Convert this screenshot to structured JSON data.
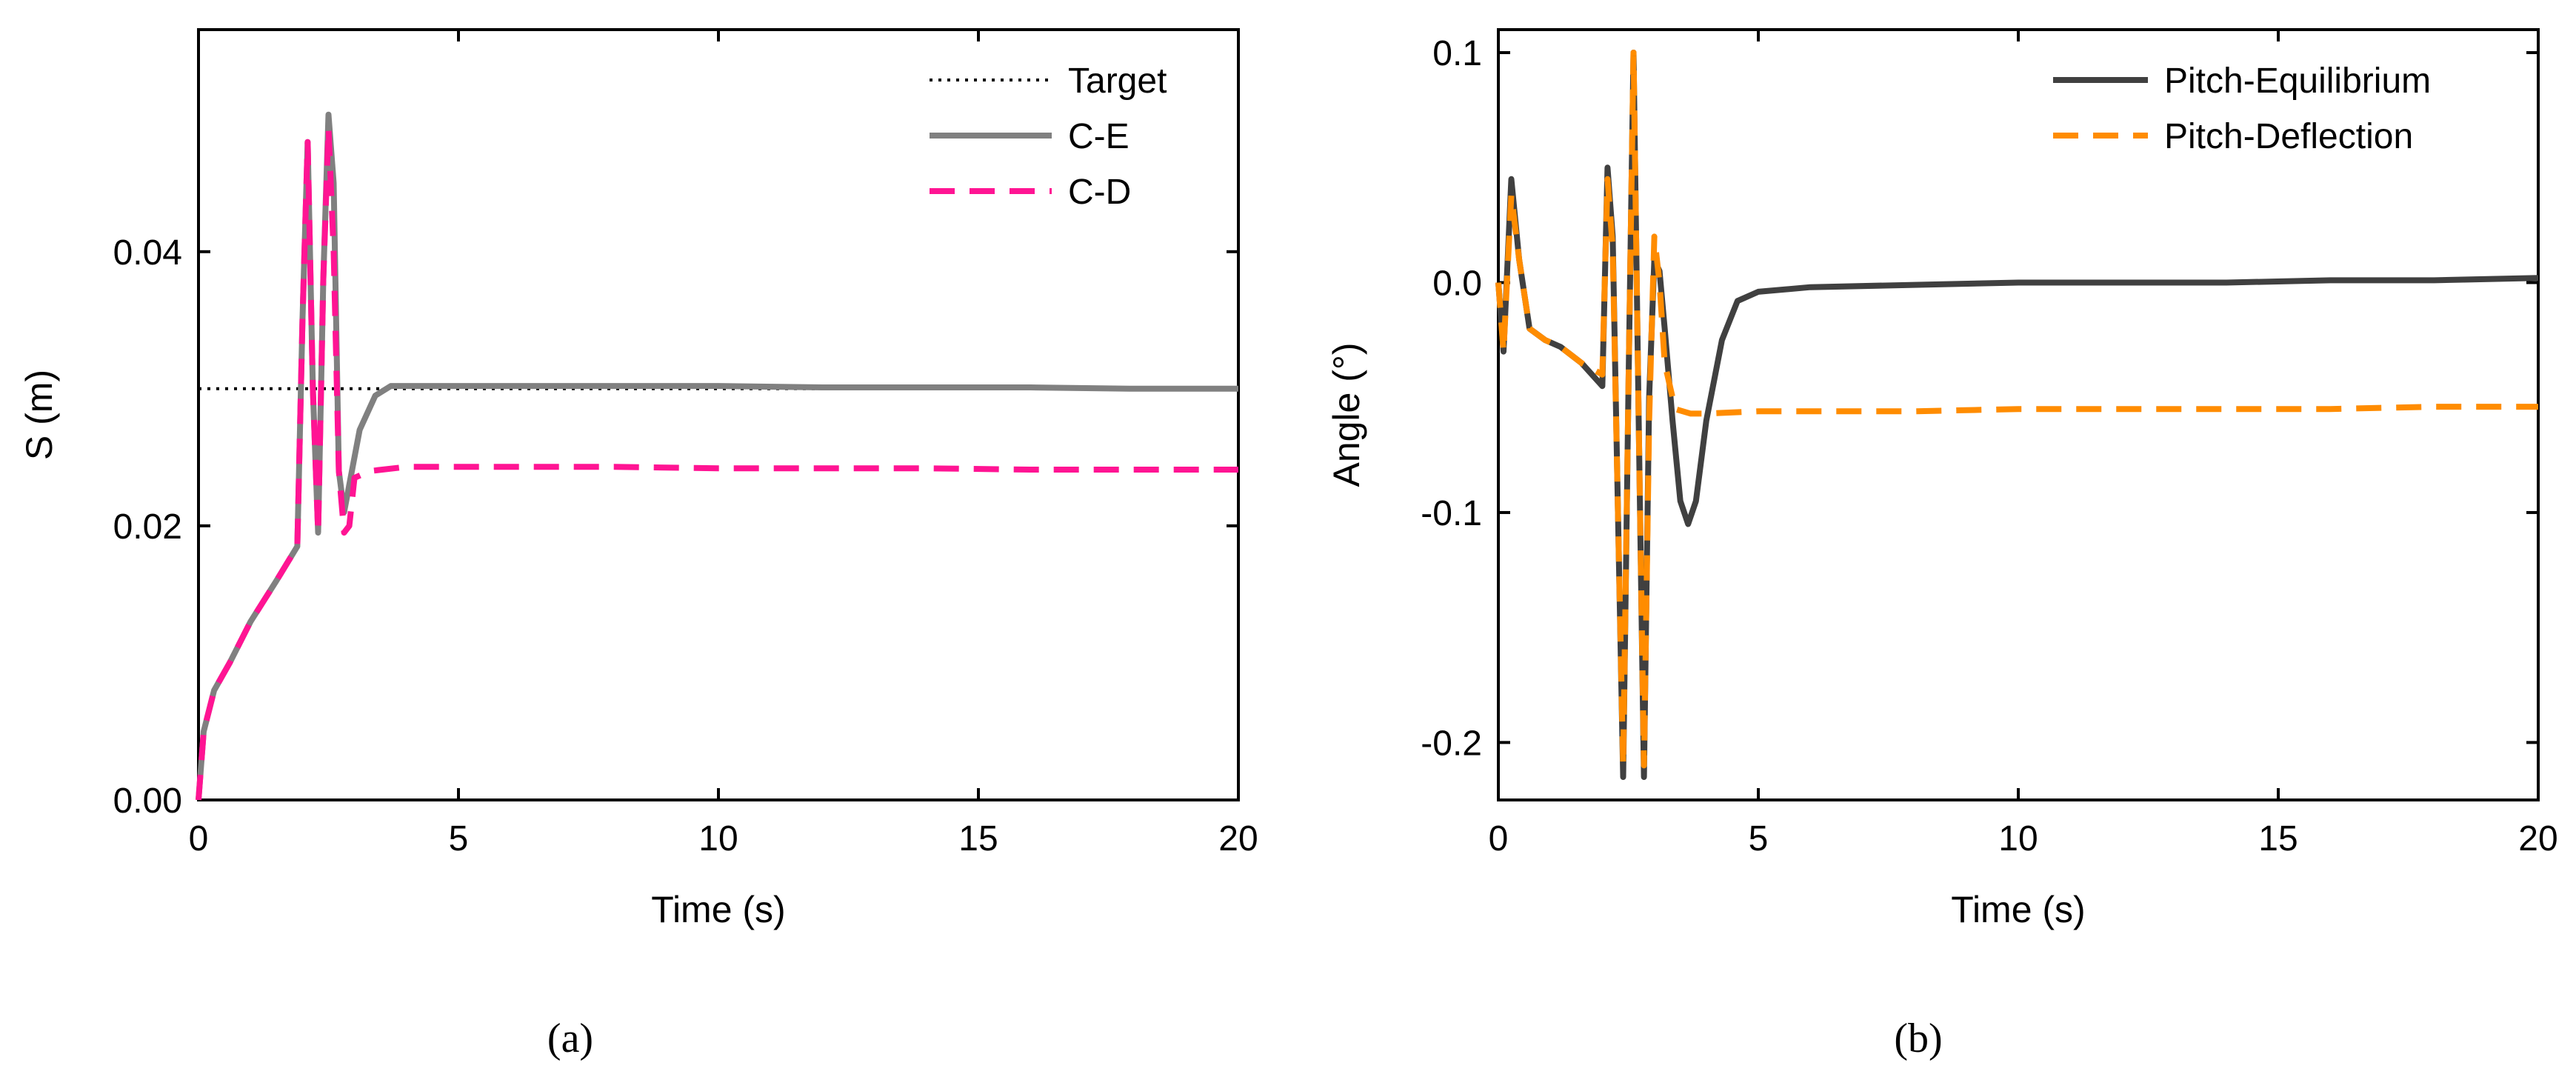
{
  "chart_data": [
    {
      "type": "line",
      "panel_label": "(a)",
      "xlabel": "Time (s)",
      "ylabel": "S (m)",
      "xlim": [
        0,
        20
      ],
      "ylim": [
        0,
        0.0562
      ],
      "xticks": [
        0,
        5,
        10,
        15,
        20
      ],
      "xtick_labels": [
        "0",
        "5",
        "10",
        "15",
        "20"
      ],
      "yticks": [
        0.0,
        0.02,
        0.04
      ],
      "ytick_labels": [
        "0.00",
        "0.02",
        "0.04"
      ],
      "grid": false,
      "legend_position": "top-right",
      "series": [
        {
          "name": "Target",
          "color": "#000000",
          "style": "dotted",
          "x": [
            0,
            20
          ],
          "y": [
            0.03,
            0.03
          ]
        },
        {
          "name": "C-E",
          "color": "#808080",
          "style": "solid",
          "x": [
            0,
            0.1,
            0.3,
            0.6,
            1.0,
            1.5,
            1.9,
            2.0,
            2.1,
            2.2,
            2.3,
            2.4,
            2.5,
            2.6,
            2.7,
            2.8,
            2.9,
            3.1,
            3.4,
            3.7,
            4.0,
            6,
            8,
            10,
            12,
            14,
            16,
            18,
            20
          ],
          "y": [
            0.0,
            0.005,
            0.008,
            0.01,
            0.013,
            0.016,
            0.0185,
            0.035,
            0.048,
            0.03,
            0.0195,
            0.038,
            0.05,
            0.045,
            0.024,
            0.021,
            0.023,
            0.027,
            0.0295,
            0.0302,
            0.0302,
            0.0302,
            0.0302,
            0.0302,
            0.0301,
            0.0301,
            0.0301,
            0.03,
            0.03
          ]
        },
        {
          "name": "C-D",
          "color": "#ff1493",
          "style": "dashed",
          "x": [
            0,
            0.1,
            0.3,
            0.6,
            1.0,
            1.5,
            1.9,
            2.0,
            2.1,
            2.2,
            2.3,
            2.4,
            2.5,
            2.6,
            2.7,
            2.8,
            2.9,
            3.0,
            3.3,
            4.0,
            6,
            8,
            10,
            12,
            14,
            16,
            18,
            20
          ],
          "y": [
            0.0,
            0.005,
            0.008,
            0.01,
            0.013,
            0.016,
            0.0185,
            0.035,
            0.048,
            0.03,
            0.0195,
            0.038,
            0.049,
            0.04,
            0.024,
            0.0195,
            0.02,
            0.0235,
            0.024,
            0.0243,
            0.0243,
            0.0243,
            0.0242,
            0.0242,
            0.0242,
            0.0241,
            0.0241,
            0.0241
          ]
        }
      ]
    },
    {
      "type": "line",
      "panel_label": "(b)",
      "xlabel": "Time (s)",
      "ylabel": "Angle (°)",
      "xlim": [
        0,
        20
      ],
      "ylim": [
        -0.225,
        0.11
      ],
      "xticks": [
        0,
        5,
        10,
        15,
        20
      ],
      "xtick_labels": [
        "0",
        "5",
        "10",
        "15",
        "20"
      ],
      "yticks": [
        -0.2,
        -0.1,
        0.0,
        0.1
      ],
      "ytick_labels": [
        "-0.2",
        "-0.1",
        "0.0",
        "0.1"
      ],
      "grid": false,
      "legend_position": "top-right",
      "series": [
        {
          "name": "Pitch-Equilibrium",
          "color": "#404040",
          "style": "solid",
          "x": [
            0,
            0.1,
            0.25,
            0.4,
            0.6,
            0.9,
            1.2,
            1.6,
            2.0,
            2.1,
            2.2,
            2.3,
            2.4,
            2.5,
            2.6,
            2.7,
            2.8,
            2.9,
            3.0,
            3.1,
            3.2,
            3.35,
            3.5,
            3.65,
            3.8,
            4.0,
            4.3,
            4.6,
            5.0,
            6,
            8,
            10,
            12,
            14,
            16,
            18,
            20
          ],
          "y": [
            0.0,
            -0.03,
            0.045,
            0.01,
            -0.02,
            -0.025,
            -0.028,
            -0.035,
            -0.045,
            0.05,
            0.02,
            -0.1,
            -0.215,
            -0.05,
            0.1,
            -0.06,
            -0.215,
            -0.05,
            0.01,
            0.005,
            -0.02,
            -0.06,
            -0.095,
            -0.105,
            -0.095,
            -0.06,
            -0.025,
            -0.008,
            -0.004,
            -0.002,
            -0.001,
            0.0,
            0.0,
            0.0,
            0.001,
            0.001,
            0.002
          ]
        },
        {
          "name": "Pitch-Deflection",
          "color": "#ff8c00",
          "style": "dashed",
          "x": [
            0,
            0.1,
            0.25,
            0.4,
            0.6,
            0.9,
            1.2,
            1.6,
            2.0,
            2.1,
            2.2,
            2.3,
            2.4,
            2.5,
            2.6,
            2.7,
            2.8,
            2.9,
            3.0,
            3.1,
            3.2,
            3.4,
            3.7,
            4.0,
            5,
            6,
            8,
            10,
            12,
            14,
            16,
            18,
            20
          ],
          "y": [
            0.0,
            -0.03,
            0.038,
            0.01,
            -0.02,
            -0.025,
            -0.028,
            -0.035,
            -0.04,
            0.045,
            0.015,
            -0.1,
            -0.21,
            -0.05,
            0.1,
            -0.06,
            -0.21,
            -0.06,
            0.02,
            0.0,
            -0.035,
            -0.055,
            -0.057,
            -0.057,
            -0.056,
            -0.056,
            -0.056,
            -0.055,
            -0.055,
            -0.055,
            -0.055,
            -0.054,
            -0.054
          ]
        }
      ]
    }
  ]
}
